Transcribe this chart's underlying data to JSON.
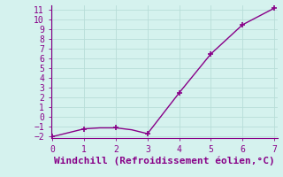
{
  "x": [
    0,
    0.5,
    1,
    1.5,
    2,
    2.5,
    3,
    4,
    5,
    6,
    7
  ],
  "y": [
    -2.0,
    -1.6,
    -1.2,
    -1.1,
    -1.1,
    -1.3,
    -1.7,
    2.5,
    6.5,
    9.5,
    11.2
  ],
  "line_color": "#880088",
  "marker": "+",
  "marker_x": [
    0,
    1,
    2,
    3,
    4,
    5,
    6,
    7
  ],
  "marker_y": [
    -2.0,
    -1.2,
    -1.1,
    -1.7,
    2.5,
    6.5,
    9.5,
    11.2
  ],
  "marker_size": 5,
  "background_color": "#d5f2ee",
  "grid_color": "#b8ddd8",
  "xlabel": "Windchill (Refroidissement éolien,°C)",
  "xlabel_color": "#880088",
  "tick_color": "#880088",
  "axis_color": "#880088",
  "xlim": [
    -0.05,
    7.1
  ],
  "ylim": [
    -2.15,
    11.5
  ],
  "xticks": [
    0,
    1,
    2,
    3,
    4,
    5,
    6,
    7
  ],
  "yticks": [
    -2,
    -1,
    0,
    1,
    2,
    3,
    4,
    5,
    6,
    7,
    8,
    9,
    10,
    11
  ],
  "xlabel_fontsize": 8,
  "tick_fontsize": 7
}
